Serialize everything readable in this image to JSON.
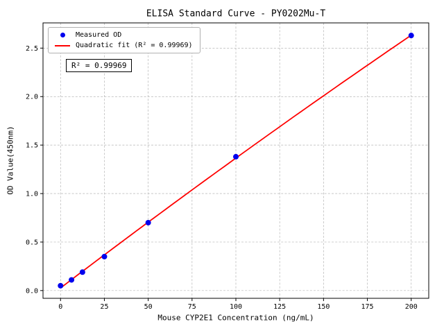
{
  "chart_data": {
    "type": "scatter",
    "title": "ELISA Standard Curve - PY0202Mu-T",
    "xlabel": "Mouse CYP2E1 Concentration (ng/mL)",
    "ylabel": "OD Value(450nm)",
    "xlim": [
      -10,
      210
    ],
    "ylim": [
      -0.08,
      2.76
    ],
    "xticks": [
      0,
      25,
      50,
      75,
      100,
      125,
      150,
      175,
      200
    ],
    "xtick_labels": [
      "0",
      "25",
      "50",
      "75",
      "100",
      "125",
      "150",
      "175",
      "200"
    ],
    "yticks": [
      0,
      0.5,
      1.0,
      1.5,
      2.0,
      2.5
    ],
    "ytick_labels": [
      "0.0",
      "0.5",
      "1.0",
      "1.5",
      "2.0",
      "2.5"
    ],
    "grid": true,
    "legend_position": "upper-left",
    "annotation": "R² = 0.99969",
    "r_squared": 0.99969,
    "series": [
      {
        "name": "Measured OD",
        "kind": "scatter",
        "marker": "circle",
        "color": "#0000ee",
        "x": [
          0,
          6.25,
          12.5,
          25,
          50,
          100,
          200
        ],
        "y": [
          0.05,
          0.11,
          0.19,
          0.35,
          0.7,
          1.38,
          2.63
        ]
      },
      {
        "name": "Quadratic fit (R² = 0.99969)",
        "kind": "line",
        "fit": "quadratic",
        "color": "#ff0000",
        "x_range": [
          0,
          200
        ]
      }
    ]
  }
}
